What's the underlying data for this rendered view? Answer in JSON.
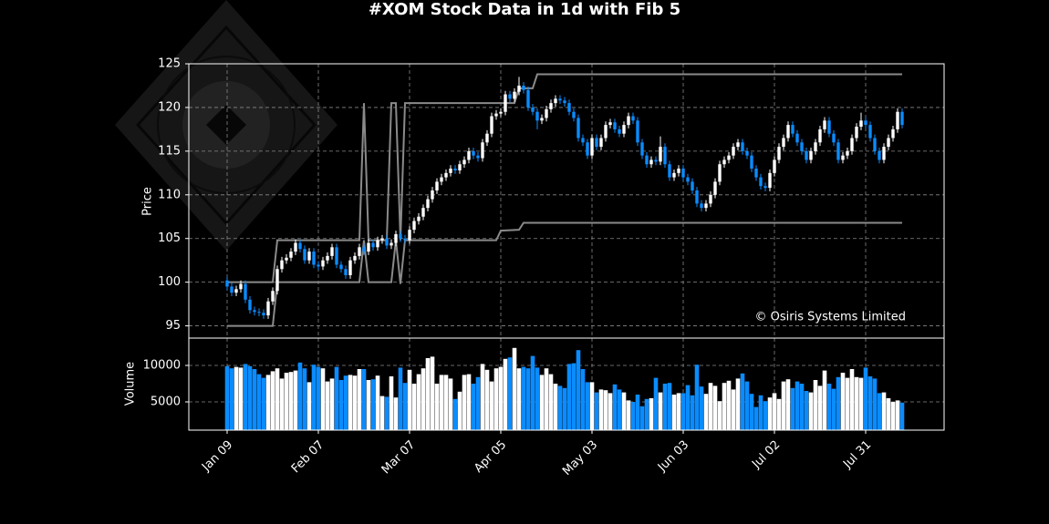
{
  "chart_data": {
    "type": "candlestick",
    "title": "#XOM Stock Data in 1d with Fib 5",
    "ylabel": "Price",
    "volume_label": "Volume",
    "annotation": "© Osiris Systems Limited",
    "up_color": "#ffffff",
    "down_color": "#0a8cff",
    "grid": true,
    "ylim": [
      93.6,
      125
    ],
    "yticks": [
      95,
      100,
      105,
      110,
      115,
      120,
      125
    ],
    "volume_ylim": [
      1125,
      13750
    ],
    "volume_yticks": [
      5000,
      10000
    ],
    "categories": [
      "Jan 09",
      null,
      null,
      null,
      null,
      null,
      null,
      null,
      null,
      null,
      null,
      null,
      null,
      null,
      null,
      null,
      null,
      null,
      null,
      null,
      "Feb 07",
      null,
      null,
      null,
      null,
      null,
      null,
      null,
      null,
      null,
      null,
      null,
      null,
      null,
      null,
      null,
      null,
      null,
      null,
      null,
      "Mar 07",
      null,
      null,
      null,
      null,
      null,
      null,
      null,
      null,
      null,
      null,
      null,
      null,
      null,
      null,
      null,
      null,
      null,
      null,
      null,
      "Apr 05",
      null,
      null,
      null,
      null,
      null,
      null,
      null,
      null,
      null,
      null,
      null,
      null,
      null,
      null,
      null,
      null,
      null,
      null,
      null,
      "May 03",
      null,
      null,
      null,
      null,
      null,
      null,
      null,
      null,
      null,
      null,
      null,
      null,
      null,
      null,
      null,
      null,
      null,
      null,
      null,
      "Jun 03",
      null,
      null,
      null,
      null,
      null,
      null,
      null,
      null,
      null,
      null,
      null,
      null,
      null,
      null,
      null,
      null,
      null,
      null,
      null,
      "Jul 02",
      null,
      null,
      null,
      null,
      null,
      null,
      null,
      null,
      null,
      null,
      null,
      null,
      null,
      null,
      null,
      null,
      null,
      null,
      null,
      "Jul 31",
      null,
      null,
      null,
      null,
      null,
      null,
      null,
      null
    ],
    "ohlc": [
      [
        100.2,
        100.6,
        99.1,
        99.5
      ],
      [
        99.5,
        99.9,
        98.4,
        98.8
      ],
      [
        98.8,
        99.6,
        98.4,
        99.2
      ],
      [
        99.2,
        100.2,
        98.8,
        99.8
      ],
      [
        99.8,
        100.2,
        97.6,
        98.0
      ],
      [
        98.0,
        98.4,
        96.4,
        96.8
      ],
      [
        96.8,
        97.2,
        96.2,
        96.6
      ],
      [
        96.6,
        97.0,
        96.1,
        96.5
      ],
      [
        96.5,
        96.9,
        95.8,
        96.2
      ],
      [
        96.2,
        98.2,
        95.8,
        97.8
      ],
      [
        97.8,
        99.4,
        97.4,
        99.0
      ],
      [
        99.0,
        101.9,
        98.6,
        101.5
      ],
      [
        101.5,
        102.9,
        101.1,
        102.5
      ],
      [
        102.5,
        103.2,
        102.1,
        102.8
      ],
      [
        102.8,
        103.9,
        102.4,
        103.5
      ],
      [
        103.5,
        104.9,
        103.1,
        104.5
      ],
      [
        104.5,
        104.9,
        103.4,
        103.8
      ],
      [
        103.8,
        104.2,
        102.1,
        102.5
      ],
      [
        102.5,
        103.9,
        102.1,
        103.5
      ],
      [
        103.5,
        103.9,
        101.6,
        102.0
      ],
      [
        102.0,
        102.4,
        101.4,
        101.8
      ],
      [
        101.8,
        102.9,
        101.4,
        102.5
      ],
      [
        102.5,
        103.4,
        102.1,
        103.0
      ],
      [
        103.0,
        104.4,
        102.6,
        104.0
      ],
      [
        104.0,
        104.4,
        101.6,
        102.0
      ],
      [
        102.0,
        102.4,
        101.1,
        101.5
      ],
      [
        101.5,
        101.9,
        100.4,
        100.8
      ],
      [
        100.8,
        102.9,
        100.4,
        102.5
      ],
      [
        102.5,
        103.4,
        102.1,
        103.0
      ],
      [
        103.0,
        104.4,
        102.6,
        104.0
      ],
      [
        104.0,
        104.4,
        103.1,
        103.5
      ],
      [
        103.5,
        104.9,
        103.1,
        104.5
      ],
      [
        104.5,
        104.9,
        103.6,
        104.0
      ],
      [
        104.0,
        105.2,
        103.6,
        104.8
      ],
      [
        104.8,
        105.4,
        104.4,
        105.0
      ],
      [
        105.0,
        105.4,
        103.8,
        104.2
      ],
      [
        104.2,
        104.9,
        103.8,
        104.5
      ],
      [
        104.5,
        105.9,
        104.1,
        105.5
      ],
      [
        105.5,
        105.9,
        104.6,
        105.0
      ],
      [
        105.0,
        105.4,
        104.4,
        104.8
      ],
      [
        104.8,
        106.4,
        104.4,
        106.0
      ],
      [
        106.0,
        107.4,
        105.6,
        107.0
      ],
      [
        107.0,
        107.9,
        106.6,
        107.5
      ],
      [
        107.5,
        108.9,
        107.1,
        108.5
      ],
      [
        108.5,
        109.9,
        108.1,
        109.5
      ],
      [
        109.5,
        110.9,
        109.1,
        110.5
      ],
      [
        110.5,
        111.9,
        110.1,
        111.5
      ],
      [
        111.5,
        112.4,
        111.1,
        112.0
      ],
      [
        112.0,
        112.9,
        111.6,
        112.5
      ],
      [
        112.5,
        113.4,
        112.1,
        113.0
      ],
      [
        113.0,
        113.4,
        112.4,
        112.8
      ],
      [
        112.8,
        113.9,
        112.4,
        113.5
      ],
      [
        113.5,
        114.4,
        113.1,
        114.0
      ],
      [
        114.0,
        115.4,
        113.6,
        115.0
      ],
      [
        115.0,
        115.4,
        114.1,
        114.5
      ],
      [
        114.5,
        114.9,
        113.8,
        114.2
      ],
      [
        114.2,
        116.4,
        113.8,
        116.0
      ],
      [
        116.0,
        117.4,
        115.6,
        117.0
      ],
      [
        117.0,
        119.4,
        116.6,
        119.0
      ],
      [
        119.0,
        119.7,
        118.6,
        119.3
      ],
      [
        119.3,
        119.9,
        118.9,
        119.5
      ],
      [
        119.5,
        121.9,
        119.1,
        121.5
      ],
      [
        121.5,
        121.9,
        120.6,
        121.0
      ],
      [
        121.0,
        122.2,
        120.6,
        121.8
      ],
      [
        121.8,
        123.5,
        121.4,
        122.5
      ],
      [
        122.5,
        122.9,
        121.6,
        122.0
      ],
      [
        122.0,
        122.4,
        119.6,
        120.0
      ],
      [
        120.0,
        120.4,
        119.1,
        119.5
      ],
      [
        119.5,
        119.9,
        117.5,
        118.5
      ],
      [
        118.5,
        119.2,
        118.1,
        118.8
      ],
      [
        118.8,
        120.2,
        118.4,
        119.8
      ],
      [
        119.8,
        120.9,
        119.4,
        120.5
      ],
      [
        120.5,
        121.4,
        120.1,
        121.0
      ],
      [
        121.0,
        121.4,
        120.4,
        120.8
      ],
      [
        120.8,
        121.2,
        120.1,
        120.5
      ],
      [
        120.5,
        120.9,
        119.1,
        119.5
      ],
      [
        119.5,
        119.9,
        118.4,
        118.8
      ],
      [
        118.8,
        119.2,
        116.1,
        116.5
      ],
      [
        116.5,
        116.9,
        115.6,
        116.0
      ],
      [
        116.0,
        116.4,
        114.1,
        114.5
      ],
      [
        114.5,
        116.9,
        114.1,
        116.5
      ],
      [
        116.5,
        116.9,
        115.1,
        115.5
      ],
      [
        115.5,
        116.9,
        115.1,
        116.5
      ],
      [
        116.5,
        118.4,
        116.1,
        118.0
      ],
      [
        118.0,
        118.7,
        117.6,
        118.3
      ],
      [
        118.3,
        118.7,
        117.1,
        117.5
      ],
      [
        117.5,
        117.9,
        116.6,
        117.0
      ],
      [
        117.0,
        118.4,
        116.6,
        118.0
      ],
      [
        118.0,
        119.4,
        117.6,
        119.0
      ],
      [
        119.0,
        119.4,
        118.1,
        118.5
      ],
      [
        118.5,
        118.9,
        115.6,
        116.0
      ],
      [
        116.0,
        116.4,
        114.1,
        114.5
      ],
      [
        114.5,
        114.9,
        113.1,
        113.5
      ],
      [
        113.5,
        114.4,
        113.1,
        114.0
      ],
      [
        114.0,
        114.4,
        113.4,
        113.8
      ],
      [
        113.8,
        116.7,
        113.4,
        115.5
      ],
      [
        115.5,
        115.9,
        113.1,
        113.5
      ],
      [
        113.5,
        113.9,
        111.6,
        112.0
      ],
      [
        112.0,
        112.9,
        111.6,
        112.5
      ],
      [
        112.5,
        113.4,
        112.1,
        113.0
      ],
      [
        113.0,
        113.4,
        111.6,
        112.0
      ],
      [
        112.0,
        112.4,
        111.1,
        111.5
      ],
      [
        111.5,
        111.9,
        110.1,
        110.5
      ],
      [
        110.5,
        110.9,
        108.6,
        109.0
      ],
      [
        109.0,
        109.4,
        108.1,
        108.5
      ],
      [
        108.5,
        109.4,
        108.1,
        109.0
      ],
      [
        109.0,
        110.4,
        108.6,
        110.0
      ],
      [
        110.0,
        111.9,
        109.6,
        111.5
      ],
      [
        111.5,
        113.9,
        111.1,
        113.5
      ],
      [
        113.5,
        114.4,
        113.1,
        114.0
      ],
      [
        114.0,
        114.9,
        113.6,
        114.5
      ],
      [
        114.5,
        115.9,
        114.1,
        115.5
      ],
      [
        115.5,
        116.4,
        115.1,
        116.0
      ],
      [
        116.0,
        116.4,
        114.6,
        115.0
      ],
      [
        115.0,
        115.4,
        114.1,
        114.5
      ],
      [
        114.5,
        114.9,
        112.6,
        113.0
      ],
      [
        113.0,
        113.4,
        111.6,
        112.0
      ],
      [
        112.0,
        112.4,
        110.6,
        111.0
      ],
      [
        111.0,
        111.4,
        110.4,
        110.8
      ],
      [
        110.8,
        112.9,
        110.4,
        112.5
      ],
      [
        112.5,
        114.4,
        112.1,
        114.0
      ],
      [
        114.0,
        115.9,
        113.6,
        115.5
      ],
      [
        115.5,
        116.9,
        115.1,
        116.5
      ],
      [
        116.5,
        118.4,
        116.1,
        118.0
      ],
      [
        118.0,
        118.4,
        116.6,
        117.0
      ],
      [
        117.0,
        117.4,
        115.6,
        116.0
      ],
      [
        116.0,
        116.4,
        114.6,
        115.0
      ],
      [
        115.0,
        115.4,
        113.6,
        114.0
      ],
      [
        114.0,
        115.4,
        113.6,
        115.0
      ],
      [
        115.0,
        116.4,
        114.6,
        116.0
      ],
      [
        116.0,
        117.9,
        115.6,
        117.5
      ],
      [
        117.5,
        118.9,
        117.1,
        118.5
      ],
      [
        118.5,
        118.9,
        116.6,
        117.0
      ],
      [
        117.0,
        117.4,
        115.6,
        116.0
      ],
      [
        116.0,
        116.4,
        113.6,
        114.0
      ],
      [
        114.0,
        114.9,
        113.6,
        114.5
      ],
      [
        114.5,
        115.4,
        114.1,
        115.0
      ],
      [
        115.0,
        116.9,
        114.6,
        116.5
      ],
      [
        116.5,
        118.2,
        116.1,
        117.8
      ],
      [
        117.8,
        119.4,
        117.4,
        118.5
      ],
      [
        118.5,
        118.9,
        117.6,
        118.0
      ],
      [
        118.0,
        118.4,
        116.1,
        116.5
      ],
      [
        116.5,
        116.9,
        114.6,
        115.0
      ],
      [
        115.0,
        115.4,
        113.6,
        114.0
      ],
      [
        114.0,
        115.9,
        113.6,
        115.5
      ],
      [
        115.5,
        116.9,
        115.1,
        116.5
      ],
      [
        116.5,
        117.9,
        116.1,
        117.5
      ],
      [
        117.5,
        119.9,
        117.1,
        119.5
      ],
      [
        119.5,
        119.9,
        117.6,
        118.0
      ]
    ],
    "volume": [
      9900,
      9600,
      9800,
      9700,
      10200,
      9900,
      9500,
      8800,
      8300,
      8700,
      9200,
      9600,
      8200,
      9000,
      9100,
      9300,
      10400,
      9600,
      7700,
      10100,
      9800,
      9600,
      7800,
      8200,
      9800,
      8000,
      8600,
      8700,
      8600,
      9500,
      9500,
      8000,
      8100,
      8600,
      5800,
      5700,
      8500,
      5600,
      9700,
      7600,
      9400,
      7500,
      8800,
      9600,
      11000,
      11200,
      7500,
      8700,
      8700,
      8200,
      5400,
      6400,
      8700,
      8800,
      7500,
      8400,
      10200,
      9400,
      7800,
      9600,
      9800,
      10900,
      11100,
      12400,
      9600,
      9800,
      9600,
      11300,
      9700,
      8700,
      9600,
      8800,
      7500,
      7200,
      6900,
      10200,
      10300,
      12100,
      9500,
      7700,
      7700,
      6300,
      6700,
      6600,
      6200,
      7400,
      6700,
      6300,
      5200,
      5000,
      6000,
      4400,
      5400,
      5500,
      8300,
      6300,
      7500,
      7600,
      6000,
      6200,
      6200,
      7300,
      5900,
      10100,
      7100,
      6100,
      7600,
      7200,
      5100,
      7600,
      7900,
      6700,
      8200,
      8900,
      7800,
      6100,
      4300,
      5900,
      5100,
      5600,
      6200,
      5400,
      7800,
      8100,
      6900,
      7800,
      7500,
      6500,
      6300,
      8000,
      7200,
      9300,
      7500,
      6800,
      8400,
      9000,
      8300,
      9500,
      8400,
      8300,
      9700,
      8500,
      8200,
      6200,
      6300,
      5500,
      5000,
      5200,
      4900
    ],
    "fib_lines": [
      {
        "color": "#8a8a8a",
        "x": [
          0,
          10,
          11,
          29,
          30,
          31,
          35,
          36,
          37,
          38,
          39,
          63,
          64,
          67,
          68,
          148
        ],
        "values": [
          100,
          100,
          104.8,
          104.8,
          120.5,
          104.8,
          104.8,
          120.5,
          120.5,
          104.8,
          120.5,
          120.5,
          122.2,
          122.2,
          123.8,
          123.8
        ]
      },
      {
        "color": "#8a8a8a",
        "x": [
          0,
          10,
          11,
          29,
          30,
          31,
          36,
          37,
          38,
          39,
          59,
          60,
          64,
          65,
          148
        ],
        "values": [
          95,
          95,
          100,
          100,
          104.8,
          100,
          100,
          104.8,
          99.8,
          104.8,
          104.8,
          105.9,
          106,
          106.8,
          106.8
        ]
      }
    ]
  }
}
